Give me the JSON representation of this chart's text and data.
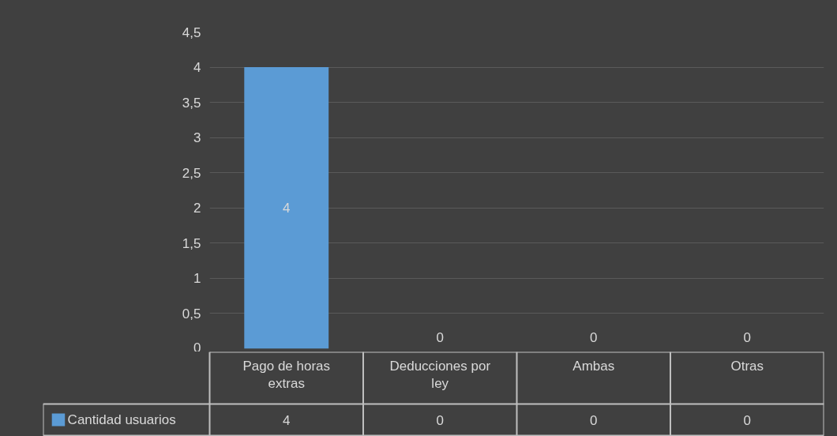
{
  "chart_data": {
    "type": "bar",
    "categories": [
      "Pago de horas extras",
      "Deducciones por ley",
      "Ambas",
      "Otras"
    ],
    "series": [
      {
        "name": "Cantidad usuarios",
        "color": "#5b9bd5",
        "values": [
          4,
          0,
          0,
          0
        ],
        "value_labels": [
          "4",
          "0",
          "0",
          "0"
        ]
      }
    ],
    "ylim": [
      0,
      4.5
    ],
    "yticks": [
      0,
      {
        "value": 0.5,
        "label": "0,5"
      },
      1,
      {
        "value": 1.5,
        "label": "1,5"
      },
      2,
      {
        "value": 2.5,
        "label": "2,5"
      },
      3,
      {
        "value": 3.5,
        "label": "3,5"
      },
      4,
      {
        "value": 4.5,
        "label": "4,5"
      }
    ],
    "grid": "y",
    "data_labels": true,
    "legend": "bottom"
  }
}
